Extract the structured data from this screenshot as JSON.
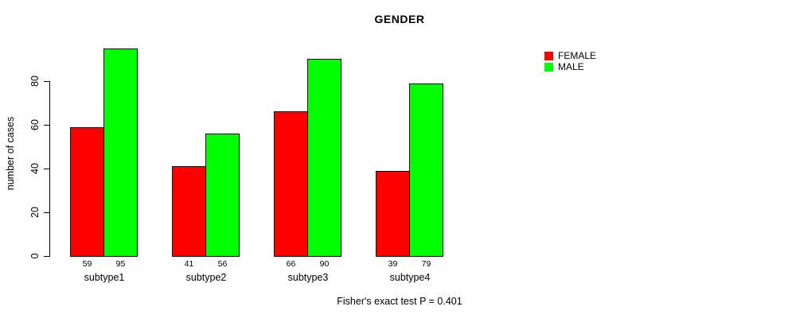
{
  "chart_data": {
    "type": "bar",
    "title": "GENDER",
    "xlabel": "",
    "ylabel": "number of cases",
    "annotation": "Fisher's exact test P = 0.401",
    "categories": [
      "subtype1",
      "subtype2",
      "subtype3",
      "subtype4"
    ],
    "series": [
      {
        "name": "FEMALE",
        "color": "#ff0000",
        "values": [
          59,
          41,
          66,
          39
        ]
      },
      {
        "name": "MALE",
        "color": "#00ff00",
        "values": [
          95,
          56,
          90,
          79
        ]
      }
    ],
    "yticks": [
      0,
      20,
      40,
      60,
      80
    ],
    "ylim": [
      0,
      95
    ],
    "bar_value_labels": true,
    "legend_position": "top-right-outside",
    "grid": false,
    "axis_color": "#000000",
    "background_color": "#ffffff"
  }
}
